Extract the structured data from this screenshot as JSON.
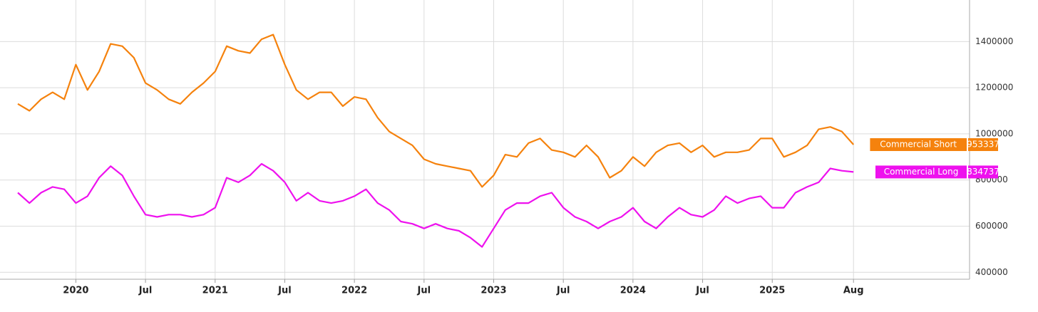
{
  "chart_data": {
    "type": "line",
    "x": [
      "2019-08",
      "2019-09",
      "2019-10",
      "2019-11",
      "2019-12",
      "2020-01",
      "2020-02",
      "2020-03",
      "2020-04",
      "2020-05",
      "2020-06",
      "2020-07",
      "2020-08",
      "2020-09",
      "2020-10",
      "2020-11",
      "2020-12",
      "2021-01",
      "2021-02",
      "2021-03",
      "2021-04",
      "2021-05",
      "2021-06",
      "2021-07",
      "2021-08",
      "2021-09",
      "2021-10",
      "2021-11",
      "2021-12",
      "2022-01",
      "2022-02",
      "2022-03",
      "2022-04",
      "2022-05",
      "2022-06",
      "2022-07",
      "2022-08",
      "2022-09",
      "2022-10",
      "2022-11",
      "2022-12",
      "2023-01",
      "2023-02",
      "2023-03",
      "2023-04",
      "2023-05",
      "2023-06",
      "2023-07",
      "2023-08",
      "2023-09",
      "2023-10",
      "2023-11",
      "2023-12",
      "2024-01",
      "2024-02",
      "2024-03",
      "2024-04",
      "2024-05",
      "2024-06",
      "2024-07",
      "2024-08",
      "2024-09",
      "2024-10",
      "2024-11",
      "2024-12",
      "2025-01",
      "2025-02",
      "2025-03",
      "2025-04",
      "2025-05",
      "2025-06",
      "2025-07",
      "2025-08"
    ],
    "series": [
      {
        "name": "Commercial Short",
        "color": "#f5820d",
        "values": [
          1130000,
          1100000,
          1150000,
          1180000,
          1150000,
          1300000,
          1190000,
          1270000,
          1390000,
          1380000,
          1330000,
          1220000,
          1190000,
          1150000,
          1130000,
          1180000,
          1220000,
          1270000,
          1380000,
          1360000,
          1350000,
          1410000,
          1430000,
          1300000,
          1190000,
          1150000,
          1180000,
          1180000,
          1120000,
          1160000,
          1150000,
          1070000,
          1010000,
          980000,
          950000,
          890000,
          870000,
          860000,
          850000,
          840000,
          770000,
          820000,
          910000,
          900000,
          960000,
          980000,
          930000,
          920000,
          900000,
          950000,
          900000,
          810000,
          840000,
          900000,
          860000,
          920000,
          950000,
          960000,
          920000,
          950000,
          900000,
          920000,
          920000,
          930000,
          980000,
          980000,
          900000,
          920000,
          950000,
          1020000,
          1030000,
          1010000,
          953337
        ]
      },
      {
        "name": "Commercial Long",
        "color": "#ee11ee",
        "values": [
          745000,
          700000,
          745000,
          770000,
          760000,
          700000,
          730000,
          810000,
          860000,
          820000,
          730000,
          650000,
          640000,
          650000,
          650000,
          640000,
          650000,
          680000,
          810000,
          790000,
          820000,
          870000,
          840000,
          790000,
          710000,
          745000,
          710000,
          700000,
          710000,
          730000,
          760000,
          700000,
          670000,
          620000,
          610000,
          590000,
          610000,
          590000,
          580000,
          550000,
          510000,
          590000,
          670000,
          700000,
          700000,
          730000,
          745000,
          680000,
          640000,
          620000,
          590000,
          620000,
          640000,
          680000,
          620000,
          590000,
          640000,
          680000,
          650000,
          640000,
          670000,
          730000,
          700000,
          720000,
          730000,
          680000,
          680000,
          745000,
          770000,
          790000,
          850000,
          840000,
          834737
        ]
      }
    ],
    "xlim": [
      "2019-08",
      "2026-06"
    ],
    "xticks": [
      {
        "value": "2020-01",
        "label": "2020"
      },
      {
        "value": "2020-07",
        "label": "Jul"
      },
      {
        "value": "2021-01",
        "label": "2021"
      },
      {
        "value": "2021-07",
        "label": "Jul"
      },
      {
        "value": "2022-01",
        "label": "2022"
      },
      {
        "value": "2022-07",
        "label": "Jul"
      },
      {
        "value": "2023-01",
        "label": "2023"
      },
      {
        "value": "2023-07",
        "label": "Jul"
      },
      {
        "value": "2024-01",
        "label": "2024"
      },
      {
        "value": "2024-07",
        "label": "Jul"
      },
      {
        "value": "2025-01",
        "label": "2025"
      },
      {
        "value": "2025-08",
        "label": "Aug"
      }
    ],
    "ylim": [
      370000,
      1580000
    ],
    "yticks": [
      400000,
      600000,
      800000,
      1000000,
      1200000,
      1400000
    ],
    "grid": true
  }
}
